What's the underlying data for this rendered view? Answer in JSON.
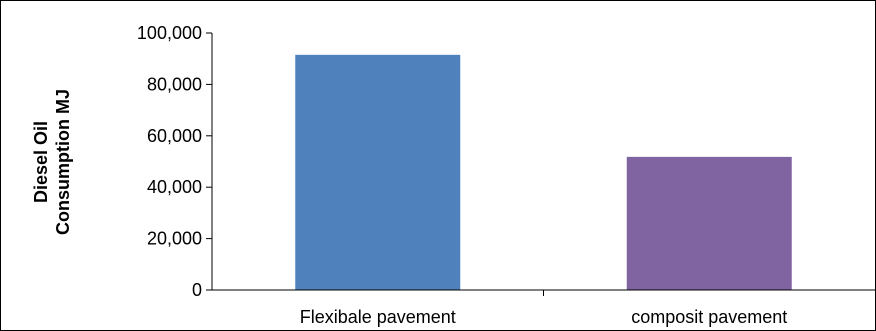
{
  "chart_data": {
    "type": "bar",
    "categories": [
      "Flexibale pavement",
      "composit pavement"
    ],
    "values": [
      91500,
      51800
    ],
    "ylabel_lines": [
      "Diesel Oil",
      "Consumption MJ"
    ],
    "xlabel": "",
    "ylim": [
      0,
      100000
    ],
    "yticks": [
      "0",
      "20,000",
      "40,000",
      "60,000",
      "80,000",
      "100,000"
    ],
    "ytick_values": [
      0,
      20000,
      40000,
      60000,
      80000,
      100000
    ],
    "colors": [
      "#4f81bd",
      "#8064a2"
    ],
    "grid": false,
    "legend": "none"
  }
}
